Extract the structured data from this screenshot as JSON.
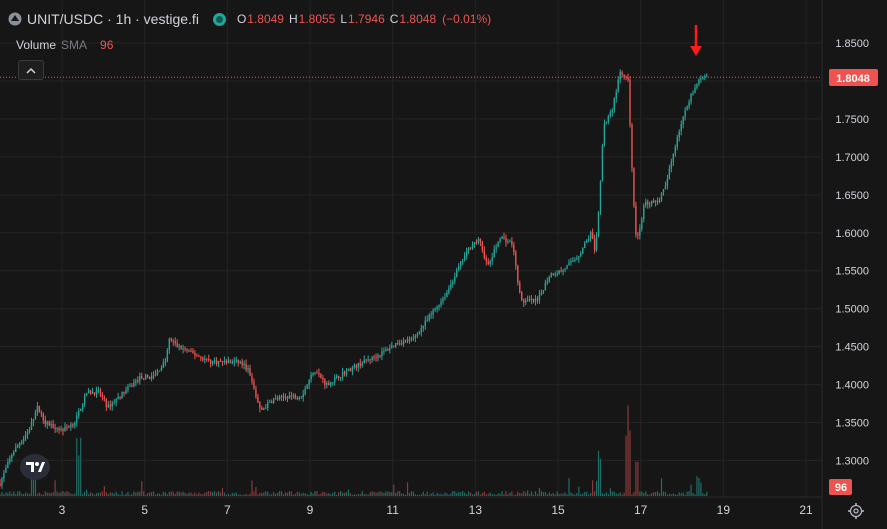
{
  "header": {
    "title": "UNIT/USDC · 1h · vestige.fi",
    "ohlc": [
      {
        "key": "O",
        "value": "1.8049"
      },
      {
        "key": "H",
        "value": "1.8055"
      },
      {
        "key": "L",
        "value": "1.7946"
      },
      {
        "key": "C",
        "value": "1.8048"
      }
    ],
    "change": "(−0.01%)"
  },
  "volume": {
    "label": "Volume",
    "indicator": "SMA",
    "value": "96"
  },
  "colors": {
    "background": "#161616",
    "up": "#26a69a",
    "down": "#ef5350",
    "grid": "#242424",
    "price_line": "#ef5350",
    "arrow": "#ff1a1a"
  },
  "icons": {
    "pair": "pair-icon",
    "status": "status-dot-icon",
    "collapse": "chevron-up-icon",
    "logo": "tradingview-logo",
    "settings": "gear-icon",
    "marker": "down-arrow-icon"
  },
  "chart_data": {
    "type": "candlestick",
    "title": "UNIT/USDC · 1h · vestige.fi",
    "timeframe": "1h",
    "grid": true,
    "x_ticks": [
      "3",
      "5",
      "7",
      "9",
      "11",
      "13",
      "15",
      "17",
      "19",
      "21"
    ],
    "x_range": [
      1.5,
      21.5
    ],
    "y_ticks": [
      "1.3000",
      "1.3500",
      "1.4000",
      "1.4500",
      "1.5000",
      "1.5500",
      "1.6000",
      "1.6500",
      "1.7000",
      "1.7500",
      "1.8000",
      "1.8500"
    ],
    "y_range": [
      1.25,
      1.8975
    ],
    "last_price": "1.8048",
    "volume_sma_badge": "96",
    "series_points": [
      [
        1.5,
        1.27
      ],
      [
        1.8,
        1.31
      ],
      [
        2.2,
        1.34
      ],
      [
        2.4,
        1.37
      ],
      [
        2.6,
        1.35
      ],
      [
        3.0,
        1.34
      ],
      [
        3.3,
        1.35
      ],
      [
        3.6,
        1.39
      ],
      [
        3.9,
        1.39
      ],
      [
        4.1,
        1.37
      ],
      [
        4.5,
        1.39
      ],
      [
        4.9,
        1.41
      ],
      [
        5.2,
        1.41
      ],
      [
        5.5,
        1.43
      ],
      [
        5.6,
        1.46
      ],
      [
        5.8,
        1.45
      ],
      [
        6.2,
        1.44
      ],
      [
        6.6,
        1.43
      ],
      [
        6.9,
        1.43
      ],
      [
        7.3,
        1.43
      ],
      [
        7.5,
        1.42
      ],
      [
        7.8,
        1.365
      ],
      [
        8.1,
        1.38
      ],
      [
        8.5,
        1.385
      ],
      [
        8.8,
        1.385
      ],
      [
        9.1,
        1.42
      ],
      [
        9.4,
        1.4
      ],
      [
        9.8,
        1.415
      ],
      [
        10.3,
        1.43
      ],
      [
        10.7,
        1.44
      ],
      [
        11.1,
        1.455
      ],
      [
        11.5,
        1.46
      ],
      [
        11.9,
        1.49
      ],
      [
        12.3,
        1.52
      ],
      [
        12.6,
        1.555
      ],
      [
        12.9,
        1.585
      ],
      [
        13.1,
        1.59
      ],
      [
        13.3,
        1.555
      ],
      [
        13.6,
        1.595
      ],
      [
        13.9,
        1.585
      ],
      [
        14.1,
        1.51
      ],
      [
        14.5,
        1.51
      ],
      [
        14.8,
        1.545
      ],
      [
        15.1,
        1.55
      ],
      [
        15.5,
        1.57
      ],
      [
        15.8,
        1.6
      ],
      [
        15.9,
        1.575
      ],
      [
        16.0,
        1.64
      ],
      [
        16.1,
        1.74
      ],
      [
        16.3,
        1.76
      ],
      [
        16.5,
        1.81
      ],
      [
        16.7,
        1.8
      ],
      [
        16.8,
        1.67
      ],
      [
        16.9,
        1.585
      ],
      [
        17.1,
        1.64
      ],
      [
        17.4,
        1.64
      ],
      [
        17.6,
        1.66
      ],
      [
        17.9,
        1.73
      ],
      [
        18.2,
        1.78
      ],
      [
        18.4,
        1.8
      ],
      [
        18.6,
        1.8048
      ]
    ],
    "volume_spikes": [
      [
        2.3,
        0.28
      ],
      [
        3.4,
        0.6
      ],
      [
        16.0,
        0.55
      ],
      [
        16.7,
        0.82
      ],
      [
        16.9,
        0.35
      ],
      [
        18.4,
        0.2
      ]
    ],
    "candle_count": 360
  }
}
